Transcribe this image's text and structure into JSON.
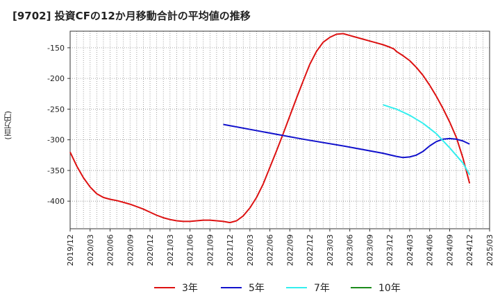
{
  "chart_data": {
    "type": "line",
    "title": "[9702]  投資CFの12か月移動合計の平均値の推移",
    "ylabel": "(百万円)",
    "xlabel": "",
    "xlim": [
      "2019-12",
      "2025-03"
    ],
    "ylim": [
      -445,
      -123
    ],
    "yticks": [
      -150,
      -200,
      -250,
      -300,
      -350,
      -400
    ],
    "xticks": [
      "2019/12",
      "2020/03",
      "2020/06",
      "2020/09",
      "2020/12",
      "2021/03",
      "2021/06",
      "2021/09",
      "2021/12",
      "2022/03",
      "2022/06",
      "2022/09",
      "2022/12",
      "2023/03",
      "2023/06",
      "2023/09",
      "2023/12",
      "2024/03",
      "2024/06",
      "2024/09",
      "2024/12",
      "2025/03"
    ],
    "grid": true,
    "legend_position": "bottom",
    "series": [
      {
        "name": "3年",
        "color": "#dd1111",
        "points": [
          [
            "2019-12",
            -320
          ],
          [
            "2020-01",
            -343
          ],
          [
            "2020-02",
            -362
          ],
          [
            "2020-03",
            -377
          ],
          [
            "2020-04",
            -388
          ],
          [
            "2020-05",
            -394
          ],
          [
            "2020-06",
            -397
          ],
          [
            "2020-07",
            -399
          ],
          [
            "2020-08",
            -402
          ],
          [
            "2020-09",
            -405
          ],
          [
            "2020-10",
            -409
          ],
          [
            "2020-11",
            -413
          ],
          [
            "2020-12",
            -418
          ],
          [
            "2021-01",
            -423
          ],
          [
            "2021-02",
            -427
          ],
          [
            "2021-03",
            -430
          ],
          [
            "2021-04",
            -432
          ],
          [
            "2021-05",
            -433
          ],
          [
            "2021-06",
            -433
          ],
          [
            "2021-07",
            -432
          ],
          [
            "2021-08",
            -431
          ],
          [
            "2021-09",
            -431
          ],
          [
            "2021-10",
            -432
          ],
          [
            "2021-11",
            -433
          ],
          [
            "2021-12",
            -435
          ],
          [
            "2022-01",
            -432
          ],
          [
            "2022-02",
            -424
          ],
          [
            "2022-03",
            -411
          ],
          [
            "2022-04",
            -394
          ],
          [
            "2022-05",
            -372
          ],
          [
            "2022-06",
            -345
          ],
          [
            "2022-07",
            -318
          ],
          [
            "2022-08",
            -290
          ],
          [
            "2022-09",
            -261
          ],
          [
            "2022-10",
            -232
          ],
          [
            "2022-11",
            -204
          ],
          [
            "2022-12",
            -177
          ],
          [
            "2023-01",
            -156
          ],
          [
            "2023-02",
            -141
          ],
          [
            "2023-03",
            -133
          ],
          [
            "2023-04",
            -128
          ],
          [
            "2023-05",
            -127
          ],
          [
            "2023-06",
            -130
          ],
          [
            "2023-07",
            -133
          ],
          [
            "2023-08",
            -136
          ],
          [
            "2023-09",
            -139
          ],
          [
            "2023-10",
            -142
          ],
          [
            "2023-11",
            -145
          ],
          [
            "2023-12",
            -149
          ],
          [
            "2023-12-20",
            -152
          ],
          [
            "2024-01",
            -156
          ],
          [
            "2024-02",
            -163
          ],
          [
            "2024-03",
            -171
          ],
          [
            "2024-04",
            -182
          ],
          [
            "2024-05",
            -195
          ],
          [
            "2024-06",
            -211
          ],
          [
            "2024-07",
            -229
          ],
          [
            "2024-08",
            -249
          ],
          [
            "2024-09",
            -271
          ],
          [
            "2024-10",
            -296
          ],
          [
            "2024-11",
            -330
          ],
          [
            "2024-12",
            -371
          ]
        ]
      },
      {
        "name": "5年",
        "color": "#1111cc",
        "points": [
          [
            "2021-11",
            -275
          ],
          [
            "2022-05",
            -287
          ],
          [
            "2022-11",
            -299
          ],
          [
            "2023-05",
            -310
          ],
          [
            "2023-11",
            -322
          ],
          [
            "2024-01",
            -327
          ],
          [
            "2024-02",
            -329
          ],
          [
            "2024-03",
            -328
          ],
          [
            "2024-04",
            -325
          ],
          [
            "2024-05",
            -319
          ],
          [
            "2024-06",
            -310
          ],
          [
            "2024-07",
            -303
          ],
          [
            "2024-08",
            -299
          ],
          [
            "2024-09",
            -298
          ],
          [
            "2024-10",
            -299
          ],
          [
            "2024-11",
            -302
          ],
          [
            "2024-12",
            -307
          ]
        ]
      },
      {
        "name": "7年",
        "color": "#33eeee",
        "points": [
          [
            "2023-11",
            -243
          ],
          [
            "2024-01",
            -250
          ],
          [
            "2024-03",
            -260
          ],
          [
            "2024-05",
            -273
          ],
          [
            "2024-07",
            -290
          ],
          [
            "2024-09",
            -313
          ],
          [
            "2024-11",
            -338
          ],
          [
            "2024-12",
            -357
          ]
        ]
      },
      {
        "name": "10年",
        "color": "#1a8a1a",
        "points": []
      }
    ]
  }
}
